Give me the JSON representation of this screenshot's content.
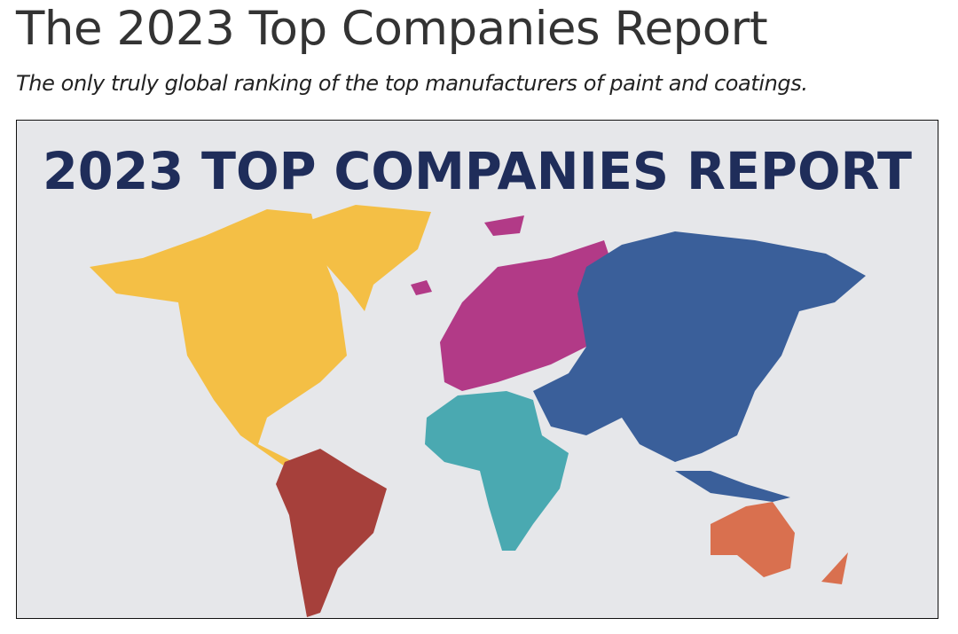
{
  "header": {
    "title": "The 2023 Top Companies Report",
    "subtitle": "The only truly global ranking of the top manufacturers of paint and coatings."
  },
  "image": {
    "heading": "2023 TOP COMPANIES REPORT"
  }
}
